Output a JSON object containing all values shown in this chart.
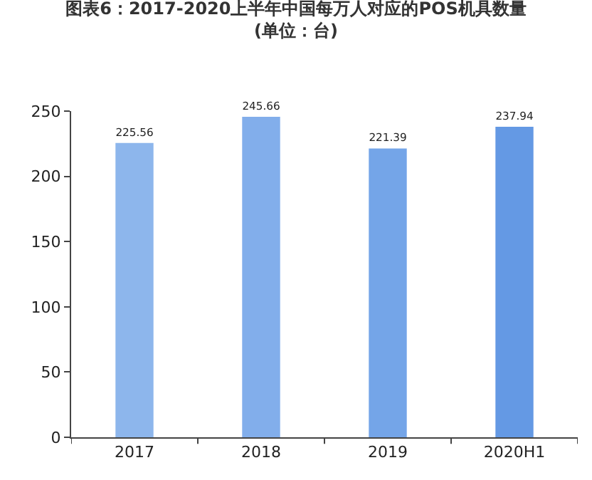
{
  "chart_data": {
    "type": "bar",
    "title": "图表6：2017-2020上半年中国每万人对应的POS机具数量(单位：台)",
    "categories": [
      "2017",
      "2018",
      "2019",
      "2020H1"
    ],
    "values": [
      225.56,
      245.66,
      221.39,
      237.94
    ],
    "colors": [
      "#8db6ec",
      "#82aeeb",
      "#74a5e8",
      "#6499e4"
    ],
    "ylim": [
      0,
      250
    ],
    "yticks": [
      0,
      50,
      100,
      150,
      200,
      250
    ],
    "data_labels": true
  }
}
